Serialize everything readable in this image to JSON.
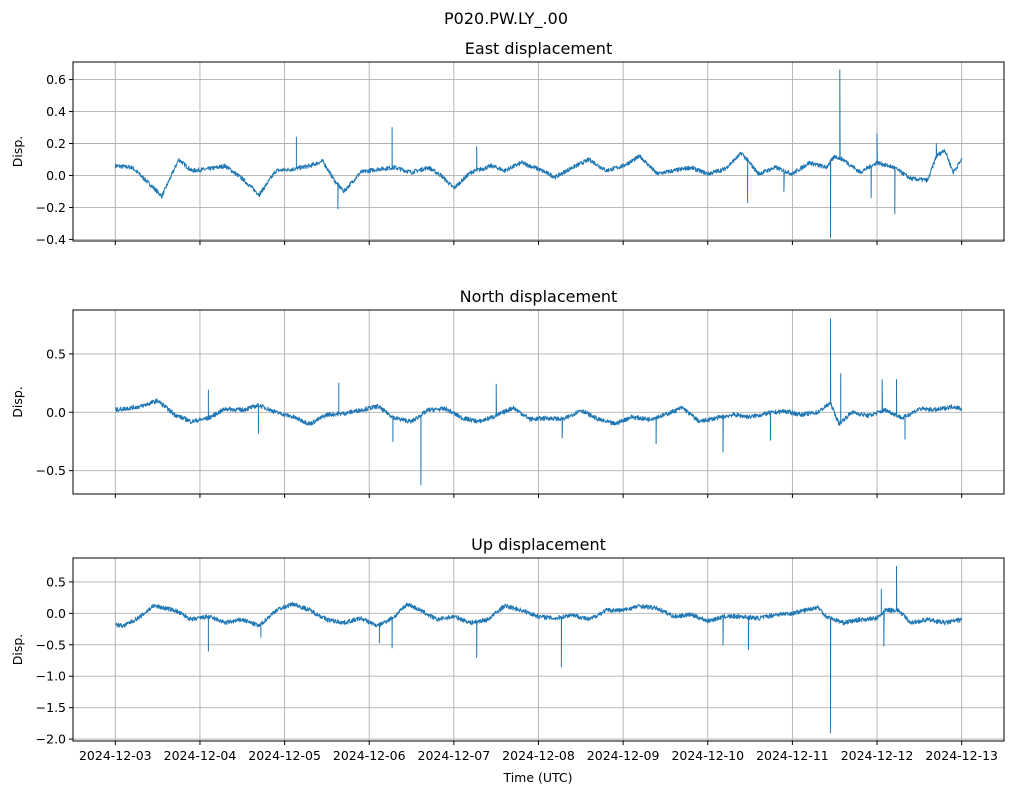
{
  "chart_data": {
    "type": "line",
    "suptitle": "P020.PW.LY_.00",
    "xlabel": "Time (UTC)",
    "x_units": "days since 2024-12-03 00:00 UTC",
    "xlim": [
      -0.5,
      10.5
    ],
    "x_tick_values": [
      0,
      1,
      2,
      3,
      4,
      5,
      6,
      7,
      8,
      9,
      10
    ],
    "x_tick_labels": [
      "2024-12-03",
      "2024-12-04",
      "2024-12-05",
      "2024-12-06",
      "2024-12-07",
      "2024-12-08",
      "2024-12-09",
      "2024-12-10",
      "2024-12-11",
      "2024-12-12",
      "2024-12-13"
    ],
    "grid": true,
    "color": "#1f77b4",
    "panels": [
      {
        "title": "East displacement",
        "ylabel": "Disp.",
        "ylim": [
          -0.41,
          0.71
        ],
        "y_ticks": [
          -0.4,
          -0.2,
          0.0,
          0.2,
          0.4,
          0.6
        ],
        "y_tick_labels": [
          "−0.4",
          "−0.2",
          "0.0",
          "0.2",
          "0.4",
          "0.6"
        ],
        "baseline": [
          [
            0,
            0.06
          ],
          [
            0.2,
            0.05
          ],
          [
            0.4,
            -0.05
          ],
          [
            0.55,
            -0.13
          ],
          [
            0.75,
            0.1
          ],
          [
            0.9,
            0.03
          ],
          [
            1.1,
            0.04
          ],
          [
            1.3,
            0.06
          ],
          [
            1.5,
            -0.02
          ],
          [
            1.7,
            -0.12
          ],
          [
            1.9,
            0.03
          ],
          [
            2.1,
            0.04
          ],
          [
            2.3,
            0.06
          ],
          [
            2.45,
            0.09
          ],
          [
            2.6,
            -0.04
          ],
          [
            2.7,
            -0.1
          ],
          [
            2.9,
            0.02
          ],
          [
            3.1,
            0.04
          ],
          [
            3.3,
            0.05
          ],
          [
            3.5,
            0.02
          ],
          [
            3.7,
            0.05
          ],
          [
            3.85,
            0.0
          ],
          [
            4.0,
            -0.08
          ],
          [
            4.2,
            0.02
          ],
          [
            4.45,
            0.06
          ],
          [
            4.6,
            0.03
          ],
          [
            4.8,
            0.08
          ],
          [
            5.0,
            0.04
          ],
          [
            5.2,
            -0.01
          ],
          [
            5.4,
            0.05
          ],
          [
            5.6,
            0.1
          ],
          [
            5.8,
            0.03
          ],
          [
            6.0,
            0.06
          ],
          [
            6.2,
            0.12
          ],
          [
            6.4,
            0.01
          ],
          [
            6.6,
            0.03
          ],
          [
            6.8,
            0.05
          ],
          [
            7.0,
            0.01
          ],
          [
            7.2,
            0.04
          ],
          [
            7.4,
            0.14
          ],
          [
            7.6,
            0.01
          ],
          [
            7.8,
            0.05
          ],
          [
            8.0,
            0.01
          ],
          [
            8.2,
            0.08
          ],
          [
            8.4,
            0.05
          ],
          [
            8.5,
            0.12
          ],
          [
            8.6,
            0.1
          ],
          [
            8.8,
            0.02
          ],
          [
            9.0,
            0.08
          ],
          [
            9.2,
            0.05
          ],
          [
            9.4,
            -0.02
          ],
          [
            9.6,
            -0.03
          ],
          [
            9.7,
            0.12
          ],
          [
            9.8,
            0.16
          ],
          [
            9.9,
            0.02
          ],
          [
            10.0,
            0.1
          ]
        ],
        "spikes": [
          [
            2.14,
            0.24
          ],
          [
            2.63,
            -0.21
          ],
          [
            3.27,
            0.3
          ],
          [
            4.27,
            0.18
          ],
          [
            7.47,
            -0.17
          ],
          [
            7.9,
            -0.1
          ],
          [
            8.45,
            -0.39
          ],
          [
            8.56,
            0.66
          ],
          [
            8.93,
            -0.14
          ],
          [
            9.0,
            0.26
          ],
          [
            9.21,
            -0.24
          ],
          [
            9.7,
            0.2
          ]
        ]
      },
      {
        "title": "North displacement",
        "ylabel": "Disp.",
        "ylim": [
          -0.7,
          0.876
        ],
        "y_ticks": [
          -0.5,
          0.0,
          0.5
        ],
        "y_tick_labels": [
          "−0.5",
          "0.0",
          "0.5"
        ],
        "baseline": [
          [
            0,
            0.02
          ],
          [
            0.3,
            0.05
          ],
          [
            0.5,
            0.1
          ],
          [
            0.7,
            -0.02
          ],
          [
            0.9,
            -0.08
          ],
          [
            1.1,
            -0.05
          ],
          [
            1.3,
            0.03
          ],
          [
            1.5,
            0.02
          ],
          [
            1.7,
            0.06
          ],
          [
            1.9,
            0.0
          ],
          [
            2.1,
            -0.04
          ],
          [
            2.3,
            -0.1
          ],
          [
            2.5,
            -0.02
          ],
          [
            2.7,
            -0.01
          ],
          [
            2.9,
            0.02
          ],
          [
            3.1,
            0.05
          ],
          [
            3.3,
            -0.05
          ],
          [
            3.5,
            -0.08
          ],
          [
            3.7,
            0.02
          ],
          [
            3.9,
            0.03
          ],
          [
            4.1,
            -0.05
          ],
          [
            4.3,
            -0.08
          ],
          [
            4.5,
            -0.03
          ],
          [
            4.7,
            0.04
          ],
          [
            4.9,
            -0.06
          ],
          [
            5.1,
            -0.05
          ],
          [
            5.3,
            -0.06
          ],
          [
            5.5,
            0.02
          ],
          [
            5.7,
            -0.06
          ],
          [
            5.9,
            -0.1
          ],
          [
            6.1,
            -0.04
          ],
          [
            6.3,
            -0.06
          ],
          [
            6.5,
            -0.02
          ],
          [
            6.7,
            0.04
          ],
          [
            6.9,
            -0.08
          ],
          [
            7.1,
            -0.05
          ],
          [
            7.3,
            -0.02
          ],
          [
            7.5,
            -0.04
          ],
          [
            7.7,
            -0.01
          ],
          [
            7.9,
            0.01
          ],
          [
            8.1,
            -0.02
          ],
          [
            8.3,
            0.0
          ],
          [
            8.45,
            0.08
          ],
          [
            8.55,
            -0.1
          ],
          [
            8.7,
            0.0
          ],
          [
            8.9,
            -0.03
          ],
          [
            9.1,
            0.02
          ],
          [
            9.3,
            -0.05
          ],
          [
            9.5,
            0.03
          ],
          [
            9.7,
            0.02
          ],
          [
            9.9,
            0.05
          ],
          [
            10.0,
            0.03
          ]
        ],
        "spikes": [
          [
            1.1,
            0.19
          ],
          [
            1.69,
            -0.18
          ],
          [
            2.64,
            0.25
          ],
          [
            3.28,
            -0.25
          ],
          [
            3.61,
            -0.62
          ],
          [
            4.5,
            0.24
          ],
          [
            5.28,
            -0.22
          ],
          [
            6.39,
            -0.27
          ],
          [
            7.18,
            -0.34
          ],
          [
            7.74,
            -0.24
          ],
          [
            8.45,
            0.8
          ],
          [
            8.57,
            0.33
          ],
          [
            9.06,
            0.28
          ],
          [
            9.23,
            0.28
          ],
          [
            9.33,
            -0.23
          ]
        ]
      },
      {
        "title": "Up displacement",
        "ylabel": "Disp.",
        "ylim": [
          -2.03,
          0.88
        ],
        "y_ticks": [
          -2.0,
          -1.5,
          -1.0,
          -0.5,
          0.0,
          0.5
        ],
        "y_tick_labels": [
          "−2.0",
          "−1.5",
          "−1.0",
          "−0.5",
          "0.0",
          "0.5"
        ],
        "baseline": [
          [
            0,
            -0.18
          ],
          [
            0.1,
            -0.2
          ],
          [
            0.3,
            -0.05
          ],
          [
            0.45,
            0.12
          ],
          [
            0.7,
            0.05
          ],
          [
            0.9,
            -0.1
          ],
          [
            1.1,
            -0.05
          ],
          [
            1.3,
            -0.15
          ],
          [
            1.5,
            -0.1
          ],
          [
            1.7,
            -0.2
          ],
          [
            1.9,
            0.05
          ],
          [
            2.1,
            0.15
          ],
          [
            2.3,
            0.05
          ],
          [
            2.5,
            -0.1
          ],
          [
            2.7,
            -0.15
          ],
          [
            2.9,
            -0.08
          ],
          [
            3.1,
            -0.2
          ],
          [
            3.3,
            -0.05
          ],
          [
            3.45,
            0.15
          ],
          [
            3.6,
            0.05
          ],
          [
            3.8,
            -0.1
          ],
          [
            4.0,
            -0.05
          ],
          [
            4.2,
            -0.15
          ],
          [
            4.4,
            -0.1
          ],
          [
            4.6,
            0.12
          ],
          [
            4.8,
            0.05
          ],
          [
            5.0,
            -0.05
          ],
          [
            5.2,
            -0.08
          ],
          [
            5.4,
            -0.02
          ],
          [
            5.6,
            -0.1
          ],
          [
            5.8,
            0.05
          ],
          [
            6.0,
            0.05
          ],
          [
            6.2,
            0.12
          ],
          [
            6.4,
            0.08
          ],
          [
            6.6,
            -0.05
          ],
          [
            6.8,
            -0.02
          ],
          [
            7.0,
            -0.12
          ],
          [
            7.2,
            -0.05
          ],
          [
            7.4,
            -0.05
          ],
          [
            7.6,
            -0.08
          ],
          [
            7.8,
            -0.02
          ],
          [
            8.0,
            0.0
          ],
          [
            8.3,
            0.1
          ],
          [
            8.4,
            -0.05
          ],
          [
            8.6,
            -0.15
          ],
          [
            8.8,
            -0.1
          ],
          [
            9.0,
            -0.08
          ],
          [
            9.1,
            0.05
          ],
          [
            9.25,
            0.05
          ],
          [
            9.4,
            -0.15
          ],
          [
            9.6,
            -0.1
          ],
          [
            9.8,
            -0.15
          ],
          [
            10.0,
            -0.1
          ]
        ],
        "spikes": [
          [
            1.1,
            -0.6
          ],
          [
            1.72,
            -0.38
          ],
          [
            3.12,
            -0.47
          ],
          [
            3.27,
            -0.55
          ],
          [
            4.27,
            -0.7
          ],
          [
            5.27,
            -0.85
          ],
          [
            7.18,
            -0.5
          ],
          [
            7.48,
            -0.58
          ],
          [
            8.45,
            -1.9
          ],
          [
            9.05,
            0.38
          ],
          [
            9.08,
            -0.52
          ],
          [
            9.23,
            0.75
          ]
        ]
      }
    ]
  }
}
